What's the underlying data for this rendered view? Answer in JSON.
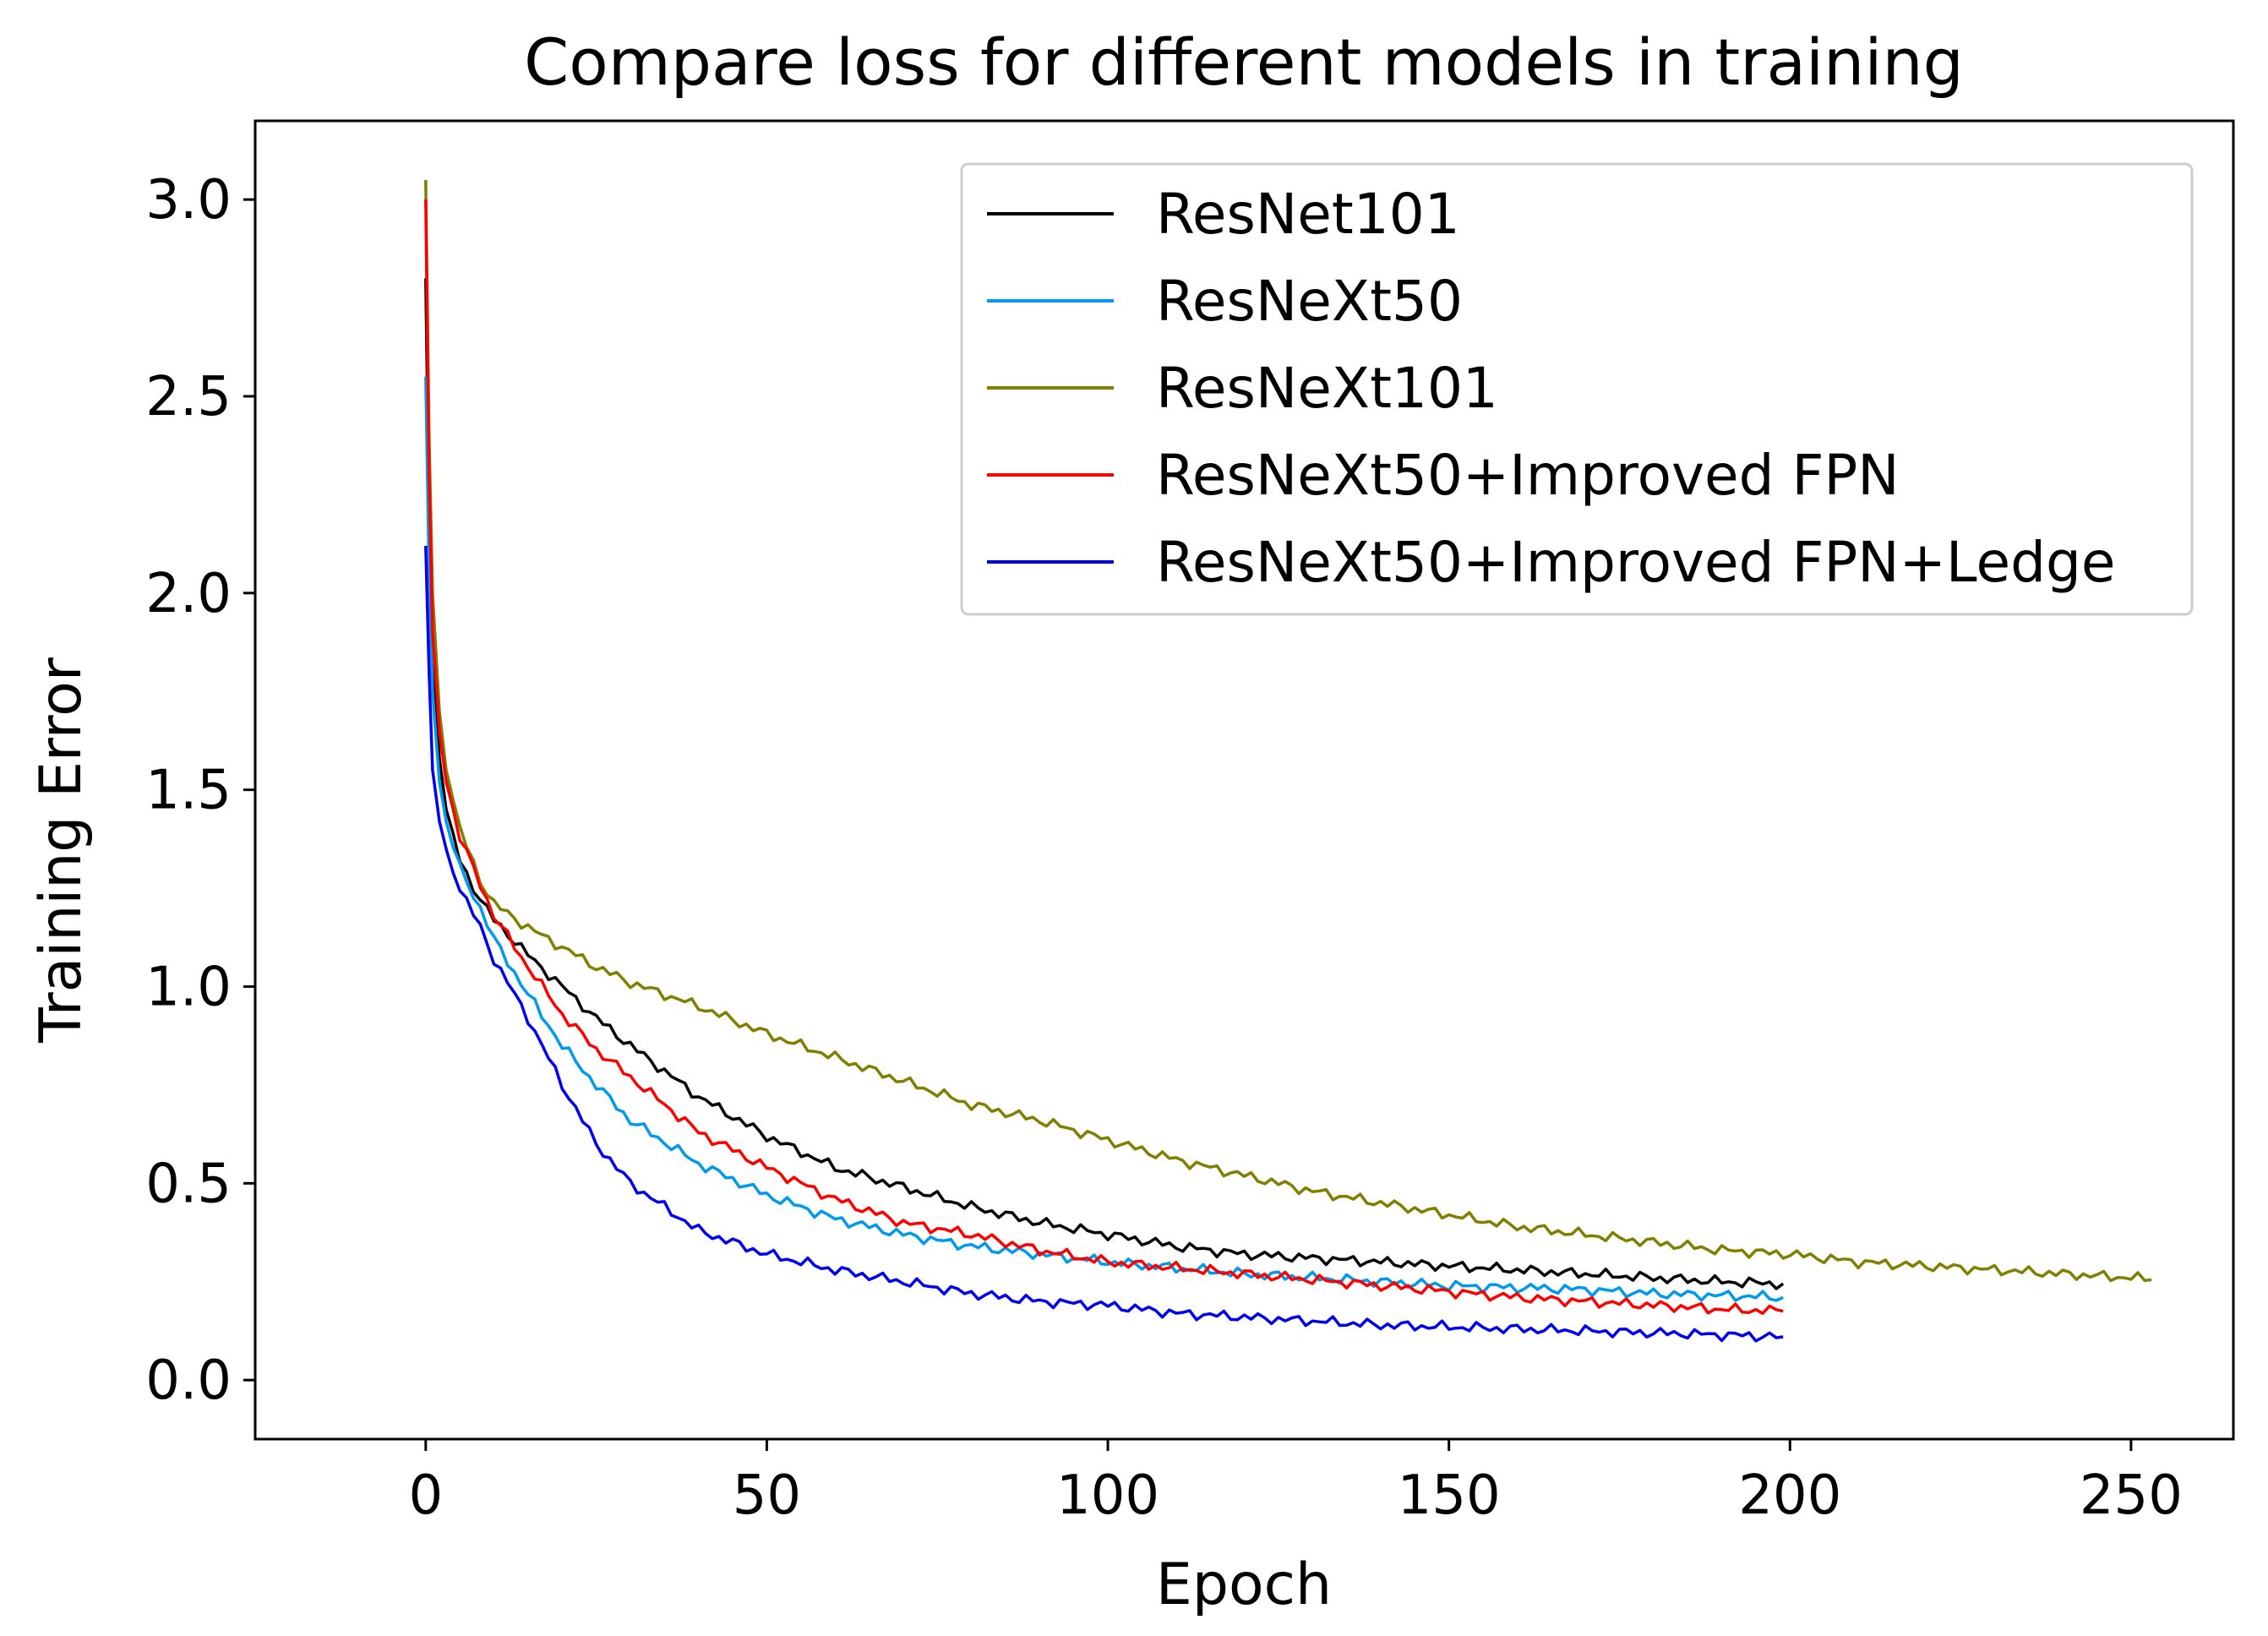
{
  "chart_data": {
    "type": "line",
    "title": "Compare loss for different models in training",
    "xlabel": "Epoch",
    "ylabel": "Training Error",
    "xlim": [
      -25,
      265
    ],
    "ylim": [
      -0.15,
      3.2
    ],
    "xticks": [
      0,
      50,
      100,
      150,
      200,
      250
    ],
    "yticks": [
      0.0,
      0.5,
      1.0,
      1.5,
      2.0,
      2.5,
      3.0
    ],
    "xtick_labels": [
      "0",
      "50",
      "100",
      "150",
      "200",
      "250"
    ],
    "ytick_labels": [
      "0.0",
      "0.5",
      "1.0",
      "1.5",
      "2.0",
      "2.5",
      "3.0"
    ],
    "grid": false,
    "legend_position": "top-right",
    "series": [
      {
        "name": "ResNet101",
        "color": "#000000",
        "x": [
          0,
          0.5,
          1,
          2,
          3,
          5,
          8,
          10,
          15,
          20,
          25,
          30,
          40,
          50,
          60,
          70,
          80,
          90,
          100,
          110,
          120,
          130,
          140,
          150,
          160,
          170,
          180,
          190,
          199
        ],
        "y": [
          2.8,
          2.2,
          1.85,
          1.58,
          1.45,
          1.32,
          1.22,
          1.17,
          1.08,
          1.0,
          0.92,
          0.85,
          0.72,
          0.62,
          0.54,
          0.49,
          0.44,
          0.4,
          0.37,
          0.34,
          0.32,
          0.31,
          0.3,
          0.29,
          0.28,
          0.27,
          0.26,
          0.25,
          0.245
        ]
      },
      {
        "name": "ResNeXt50",
        "color": "#0099ee",
        "x": [
          0,
          0.5,
          1,
          2,
          3,
          5,
          8,
          10,
          15,
          20,
          25,
          30,
          40,
          50,
          60,
          70,
          80,
          90,
          100,
          110,
          120,
          130,
          140,
          150,
          160,
          170,
          180,
          190,
          199
        ],
        "y": [
          2.55,
          2.05,
          1.75,
          1.52,
          1.42,
          1.3,
          1.2,
          1.12,
          0.98,
          0.85,
          0.75,
          0.66,
          0.55,
          0.47,
          0.41,
          0.37,
          0.34,
          0.32,
          0.3,
          0.285,
          0.27,
          0.26,
          0.25,
          0.24,
          0.235,
          0.23,
          0.22,
          0.215,
          0.21
        ]
      },
      {
        "name": "ResNeXt101",
        "color": "#808000",
        "x": [
          0,
          0.5,
          1,
          2,
          3,
          5,
          8,
          10,
          15,
          20,
          25,
          30,
          40,
          50,
          60,
          70,
          80,
          90,
          100,
          110,
          120,
          130,
          140,
          150,
          160,
          170,
          180,
          190,
          200,
          210,
          220,
          230,
          240,
          250,
          253
        ],
        "y": [
          3.05,
          2.4,
          2.0,
          1.7,
          1.55,
          1.4,
          1.27,
          1.21,
          1.15,
          1.1,
          1.05,
          1.01,
          0.95,
          0.88,
          0.82,
          0.76,
          0.7,
          0.66,
          0.61,
          0.56,
          0.52,
          0.48,
          0.45,
          0.42,
          0.39,
          0.37,
          0.35,
          0.33,
          0.32,
          0.3,
          0.29,
          0.28,
          0.27,
          0.26,
          0.255
        ]
      },
      {
        "name": "ResNeXt50+Improved FPN",
        "color": "#ff0000",
        "x": [
          0,
          0.5,
          1,
          2,
          3,
          5,
          8,
          10,
          15,
          20,
          25,
          30,
          40,
          50,
          60,
          70,
          80,
          90,
          100,
          110,
          120,
          130,
          140,
          150,
          160,
          170,
          180,
          190,
          199
        ],
        "y": [
          3.0,
          2.3,
          1.9,
          1.65,
          1.52,
          1.38,
          1.26,
          1.18,
          1.05,
          0.93,
          0.84,
          0.77,
          0.63,
          0.54,
          0.46,
          0.4,
          0.37,
          0.33,
          0.3,
          0.285,
          0.27,
          0.255,
          0.24,
          0.225,
          0.21,
          0.2,
          0.19,
          0.18,
          0.175
        ]
      },
      {
        "name": "ResNeXt50+Improved FPN+Ledge",
        "color": "#0000ee",
        "x": [
          0,
          0.5,
          1,
          2,
          3,
          5,
          8,
          10,
          15,
          20,
          25,
          30,
          40,
          50,
          60,
          70,
          80,
          90,
          100,
          110,
          120,
          130,
          140,
          150,
          160,
          170,
          180,
          190,
          199
        ],
        "y": [
          2.12,
          1.8,
          1.55,
          1.42,
          1.35,
          1.25,
          1.15,
          1.07,
          0.92,
          0.75,
          0.6,
          0.5,
          0.38,
          0.32,
          0.28,
          0.25,
          0.22,
          0.2,
          0.19,
          0.17,
          0.16,
          0.15,
          0.14,
          0.135,
          0.13,
          0.125,
          0.12,
          0.115,
          0.11
        ]
      }
    ]
  }
}
